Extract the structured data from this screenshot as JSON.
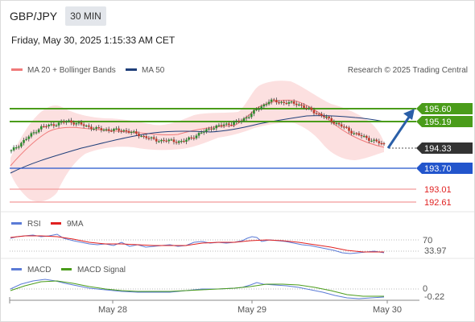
{
  "header": {
    "symbol": "GBP/JPY",
    "timeframe_button": "30 MIN",
    "datetime": "Friday, May 30, 2025 1:15:33 AM CET"
  },
  "main_panel": {
    "legend": [
      {
        "label": "MA 20 + Bollinger Bands",
        "color": "#f07a7a"
      },
      {
        "label": "MA 50",
        "color": "#1f3f7a"
      }
    ],
    "watermark": "Research © 2025 Trading Central"
  },
  "rsi_panel": {
    "legend": [
      {
        "label": "RSI",
        "color": "#5b7bd6"
      },
      {
        "label": "9MA",
        "color": "#e02020"
      }
    ],
    "level_label": "70",
    "value_label": "33.97"
  },
  "macd_panel": {
    "legend": [
      {
        "label": "MACD",
        "color": "#5b7bd6"
      },
      {
        "label": "MACD Signal",
        "color": "#4a9c1a"
      }
    ],
    "zero_label": "0",
    "value_label": "-0.22"
  },
  "x_axis": {
    "labels": [
      "May 28",
      "May 29",
      "May 30"
    ]
  },
  "chart_data": [
    {
      "type": "candlestick",
      "title": "GBP/JPY",
      "ylim": [
        192.4,
        196.2
      ],
      "approx_close_path": [
        {
          "x": "May 27 (late)",
          "y": 194.25
        },
        {
          "x": "May 27 (late)",
          "y": 195.0
        },
        {
          "x": "May 28 (early)",
          "y": 195.2
        },
        {
          "x": "May 28",
          "y": 194.95
        },
        {
          "x": "May 28",
          "y": 194.9
        },
        {
          "x": "May 28 (late)",
          "y": 194.6
        },
        {
          "x": "May 28 (late)",
          "y": 194.55
        },
        {
          "x": "May 29 (early)",
          "y": 195.0
        },
        {
          "x": "May 29 (early)",
          "y": 195.2
        },
        {
          "x": "May 29",
          "y": 195.85
        },
        {
          "x": "May 29",
          "y": 195.75
        },
        {
          "x": "May 29 (late)",
          "y": 195.3
        },
        {
          "x": "May 29 (late)",
          "y": 194.8
        },
        {
          "x": "May 30",
          "y": 194.45
        }
      ],
      "levels": [
        {
          "value": 195.6,
          "label": "195.60",
          "type": "resistance",
          "color": "#4a9c1a"
        },
        {
          "value": 195.19,
          "label": "195.19",
          "type": "resistance",
          "color": "#4a9c1a"
        },
        {
          "value": 194.33,
          "label": "194.33",
          "type": "last_price",
          "color": "#333333"
        },
        {
          "value": 193.7,
          "label": "193.70",
          "type": "pivot",
          "color": "#2255cc"
        },
        {
          "value": 193.01,
          "label": "193.01",
          "type": "support",
          "color": "#e02020"
        },
        {
          "value": 192.61,
          "label": "192.61",
          "type": "support",
          "color": "#e02020"
        }
      ],
      "series": [
        {
          "name": "MA 20 + Bollinger Bands",
          "color": "#f07a7a"
        },
        {
          "name": "MA 50",
          "color": "#1f3f7a"
        }
      ]
    },
    {
      "type": "line",
      "series": [
        {
          "name": "RSI",
          "color": "#5b7bd6"
        },
        {
          "name": "9MA",
          "color": "#e02020"
        }
      ],
      "ylim": [
        20,
        80
      ],
      "level": 70,
      "last_value": 33.97
    },
    {
      "type": "line",
      "series": [
        {
          "name": "MACD",
          "color": "#5b7bd6"
        },
        {
          "name": "MACD Signal",
          "color": "#4a9c1a"
        }
      ],
      "ylim": [
        -0.4,
        0.9
      ],
      "zero": 0,
      "last_value": -0.22
    }
  ]
}
